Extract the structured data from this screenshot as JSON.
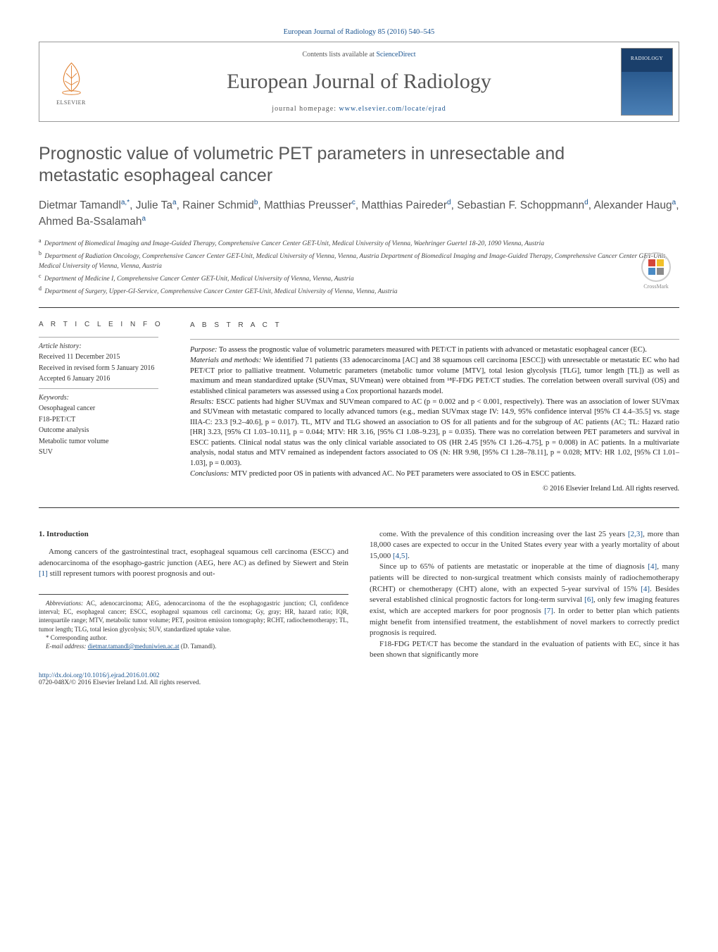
{
  "header": {
    "journal_ref": "European Journal of Radiology 85 (2016) 540–545",
    "contents_text": "Contents lists available at ",
    "contents_link": "ScienceDirect",
    "journal_name": "European Journal of Radiology",
    "homepage_label": "journal homepage: ",
    "homepage_url": "www.elsevier.com/locate/ejrad",
    "elsevier_label": "ELSEVIER",
    "cover_label": "RADIOLOGY",
    "crossmark_label": "CrossMark"
  },
  "article": {
    "title": "Prognostic value of volumetric PET parameters in unresectable and metastatic esophageal cancer",
    "authors_html": "Dietmar Tamandl<sup>a,*</sup>, Julie Ta<sup>a</sup>, Rainer Schmid<sup>b</sup>, Matthias Preusser<sup>c</sup>, Matthias Paireder<sup>d</sup>, Sebastian F. Schoppmann<sup>d</sup>, Alexander Haug<sup>a</sup>, Ahmed Ba-Ssalamah<sup>a</sup>",
    "affiliations": [
      {
        "sup": "a",
        "text": "Department of Biomedical Imaging and Image-Guided Therapy, Comprehensive Cancer Center GET-Unit, Medical University of Vienna, Waehringer Guertel 18-20, 1090 Vienna, Austria"
      },
      {
        "sup": "b",
        "text": "Department of Radiation Oncology, Comprehensive Cancer Center GET-Unit, Medical University of Vienna, Vienna, Austria Department of Biomedical Imaging and Image-Guided Therapy, Comprehensive Cancer Center GET-Unit, Medical University of Vienna, Vienna, Austria"
      },
      {
        "sup": "c",
        "text": "Department of Medicine I, Comprehensive Cancer Center GET-Unit, Medical University of Vienna, Vienna, Austria"
      },
      {
        "sup": "d",
        "text": "Department of Surgery, Upper-GI-Service, Comprehensive Cancer Center GET-Unit, Medical University of Vienna, Vienna, Austria"
      }
    ]
  },
  "info": {
    "article_info_heading": "A R T I C L E   I N F O",
    "history_label": "Article history:",
    "history": [
      "Received 11 December 2015",
      "Received in revised form 5 January 2016",
      "Accepted 6 January 2016"
    ],
    "keywords_label": "Keywords:",
    "keywords": [
      "Oesophageal cancer",
      "F18-PET/CT",
      "Outcome analysis",
      "Metabolic tumor volume",
      "SUV"
    ]
  },
  "abstract": {
    "heading": "A B S T R A C T",
    "paragraphs": [
      {
        "label": "Purpose:",
        "text": " To assess the prognostic value of volumetric parameters measured with PET/CT in patients with advanced or metastatic esophageal cancer (EC)."
      },
      {
        "label": "Materials and methods:",
        "text": " We identified 71 patients (33 adenocarcinoma [AC] and 38 squamous cell carcinoma [ESCC]) with unresectable or metastatic EC who had PET/CT prior to palliative treatment. Volumetric parameters (metabolic tumor volume [MTV], total lesion glycolysis [TLG], tumor length [TL]) as well as maximum and mean standardized uptake (SUVmax, SUVmean) were obtained from ¹⁸F-FDG PET/CT studies. The correlation between overall survival (OS) and established clinical parameters was assessed using a Cox proportional hazards model."
      },
      {
        "label": "Results:",
        "text": " ESCC patients had higher SUVmax and SUVmean compared to AC (p = 0.002 and p < 0.001, respectively). There was an association of lower SUVmax and SUVmean with metastatic compared to locally advanced tumors (e.g., median SUVmax stage IV: 14.9, 95% confidence interval [95% CI 4.4–35.5] vs. stage IIIA-C: 23.3 [9.2–40.6], p = 0.017). TL, MTV and TLG showed an association to OS for all patients and for the subgroup of AC patients (AC; TL: Hazard ratio [HR] 3.23, [95% CI 1.03–10.11], p = 0.044; MTV: HR 3.16, [95% CI 1.08–9.23], p = 0.035). There was no correlation between PET parameters and survival in ESCC patients. Clinical nodal status was the only clinical variable associated to OS (HR 2.45 [95% CI 1.26–4.75], p = 0.008) in AC patients. In a multivariate analysis, nodal status and MTV remained as independent factors associated to OS (N: HR 9.98, [95% CI 1.28–78.11], p = 0.028; MTV: HR 1.02, [95% CI 1.01–1.03], p = 0.003)."
      },
      {
        "label": "Conclusions:",
        "text": " MTV predicted poor OS in patients with advanced AC. No PET parameters were associated to OS in ESCC patients."
      }
    ],
    "copyright": "© 2016 Elsevier Ireland Ltd. All rights reserved."
  },
  "body": {
    "intro_heading": "1. Introduction",
    "col1_p1": "Among cancers of the gastrointestinal tract, esophageal squamous cell carcinoma (ESCC) and adenocarcinoma of the esophago-gastric junction (AEG, here AC) as defined by Siewert and Stein [1] still represent tumors with poorest prognosis and out-",
    "col2_p1": "come. With the prevalence of this condition increasing over the last 25 years [2,3], more than 18,000 cases are expected to occur in the United States every year with a yearly mortality of about 15,000 [4,5].",
    "col2_p2": "Since up to 65% of patients are metastatic or inoperable at the time of diagnosis [4], many patients will be directed to non-surgical treatment which consists mainly of radiochemotherapy (RCHT) or chemotherapy (CHT) alone, with an expected 5-year survival of 15% [4]. Besides several established clinical prognostic factors for long-term survival [6], only few imaging features exist, which are accepted markers for poor prognosis [7]. In order to better plan which patients might benefit from intensified treatment, the establishment of novel markers to correctly predict prognosis is required.",
    "col2_p3": "F18-FDG PET/CT has become the standard in the evaluation of patients with EC, since it has been shown that significantly more"
  },
  "footnotes": {
    "abbr_label": "Abbreviations:",
    "abbr_text": " AC, adenocarcinoma; AEG, adenocarcinoma of the the esophagogastric junction; CI, confidence interval; EC, esophageal cancer; ESCC, esophageal squamous cell carcinoma; Gy, gray; HR, hazard ratio; IQR, interquartile range; MTV, metabolic tumor volume; PET, positron emission tomography; RCHT, radiochemotherapy; TL, tumor length; TLG, total lesion glycolysis; SUV, standardized uptake value.",
    "corresp": "* Corresponding author.",
    "email_label": "E-mail address: ",
    "email": "dietmar.tamandl@meduniwien.ac.at",
    "email_suffix": " (D. Tamandl)."
  },
  "doi": {
    "url": "http://dx.doi.org/10.1016/j.ejrad.2016.01.002",
    "copyright_line": "0720-048X/© 2016 Elsevier Ireland Ltd. All rights reserved."
  },
  "colors": {
    "link_color": "#1a5490",
    "text_color": "#333333",
    "heading_color": "#585858",
    "rule_color": "#333333"
  }
}
